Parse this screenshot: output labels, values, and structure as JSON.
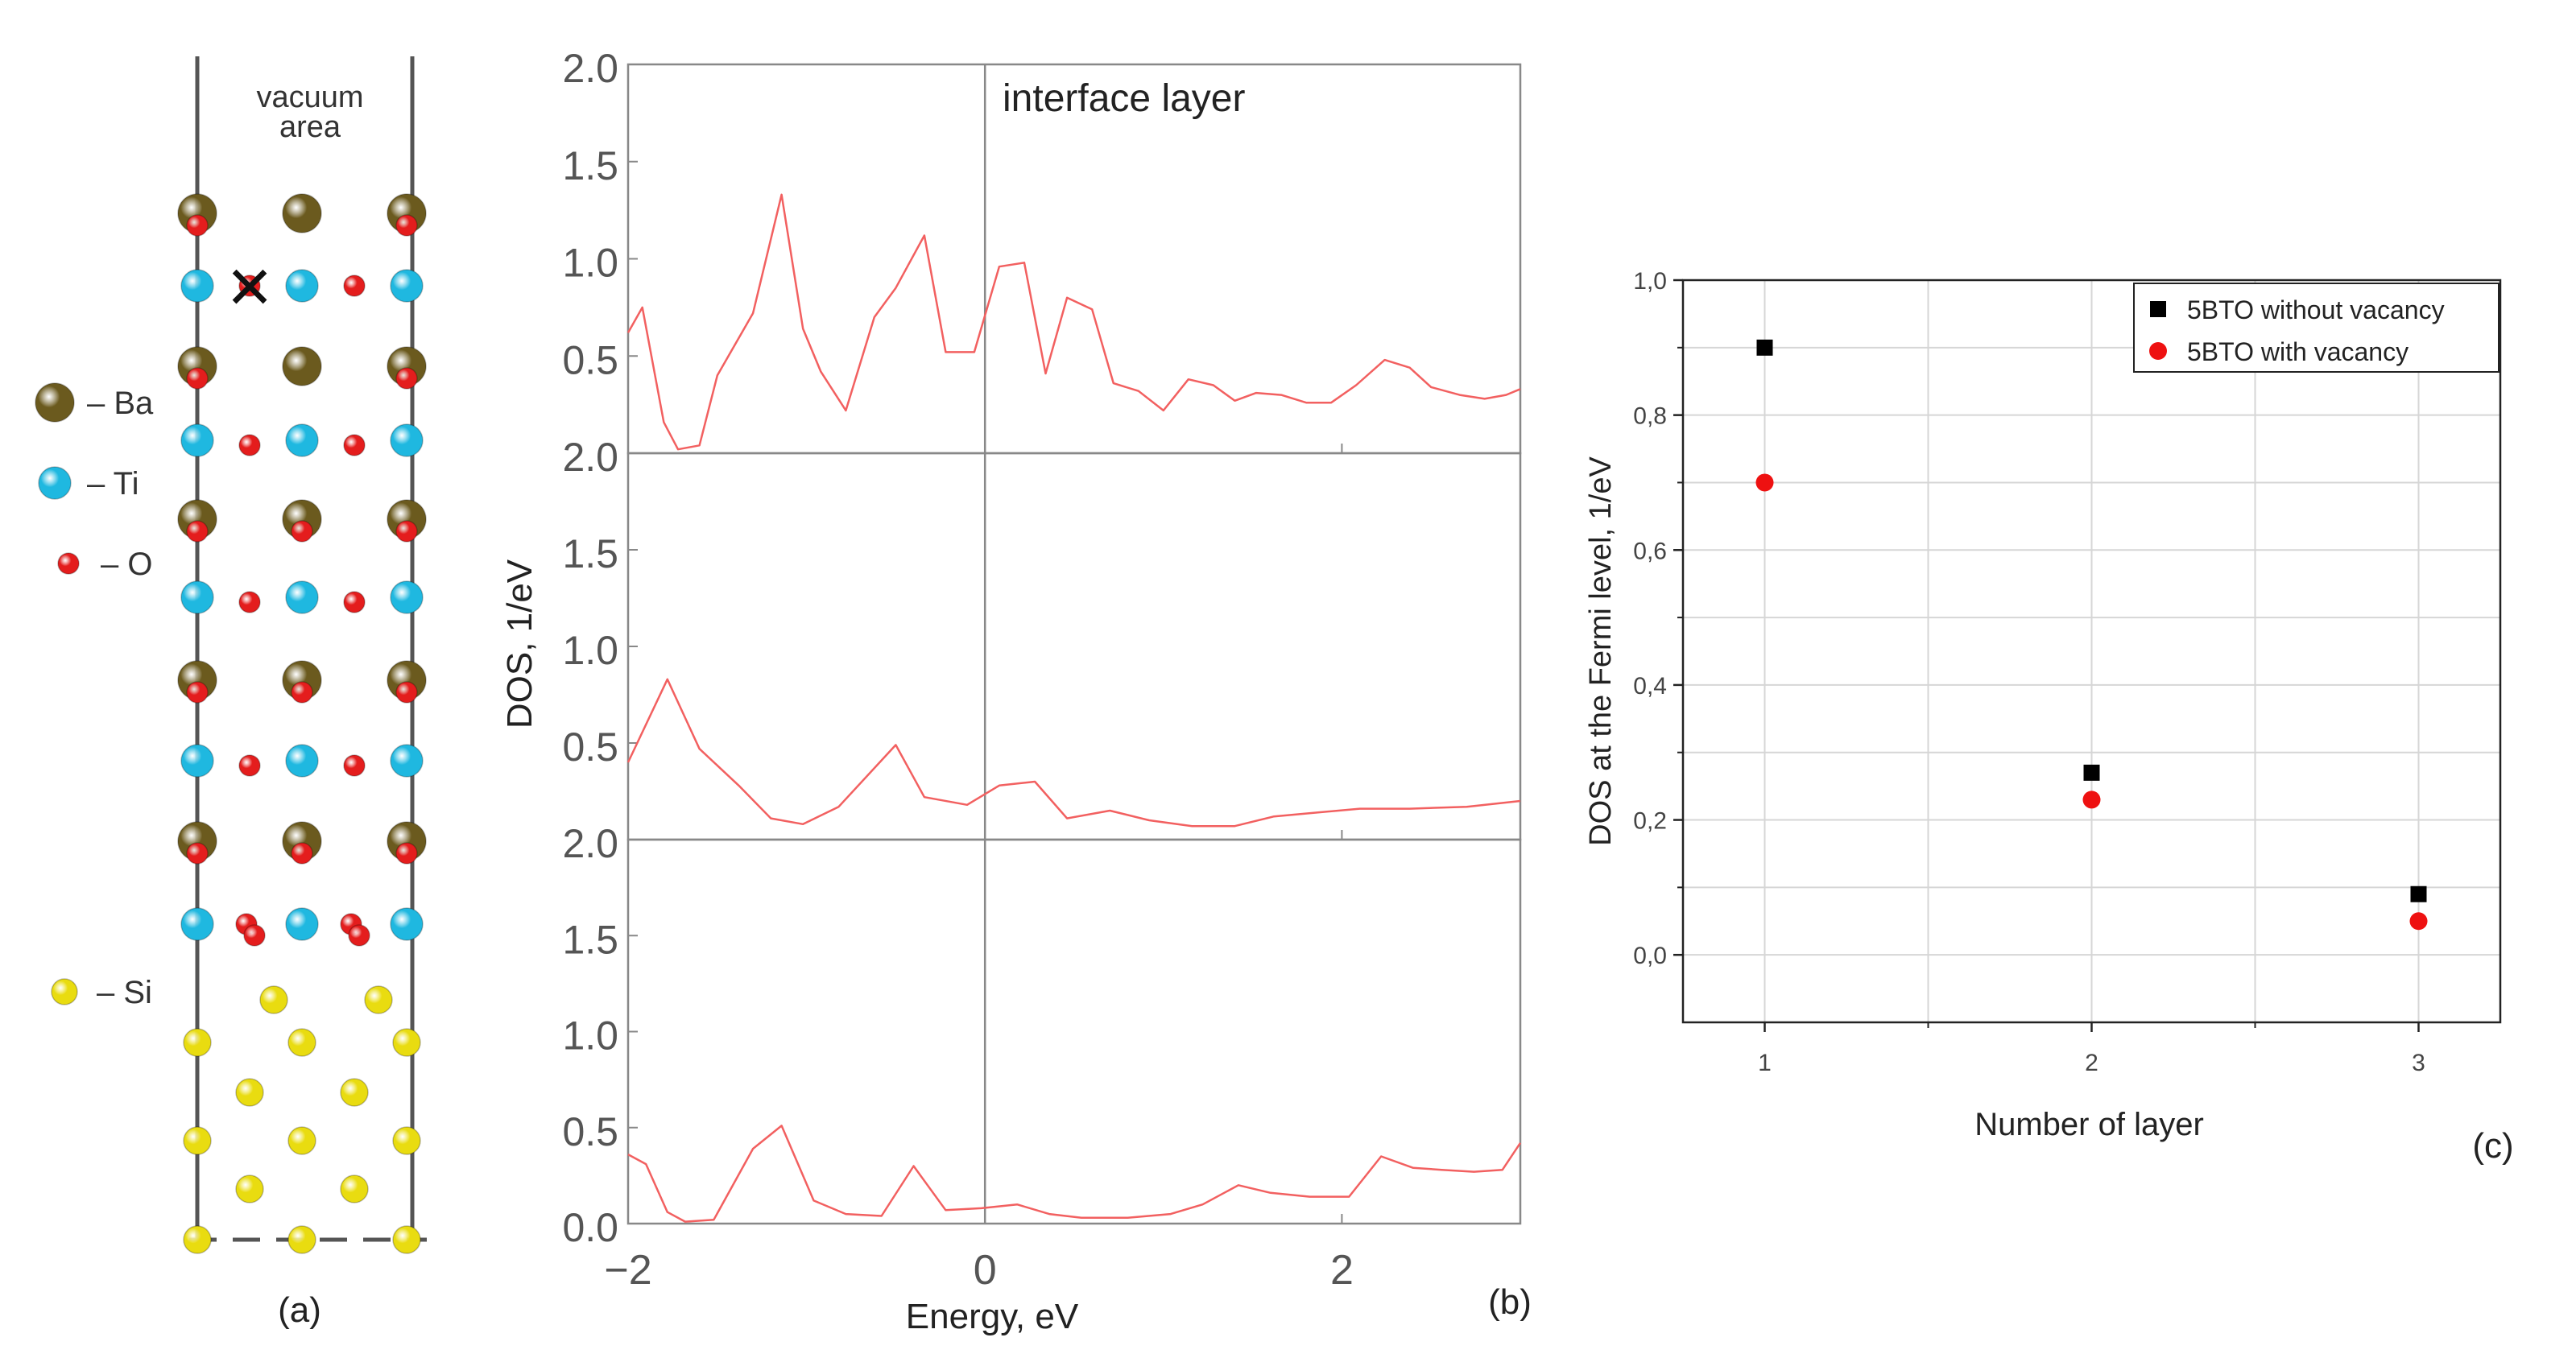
{
  "structure": {
    "vacuum_label_line1": "vacuum",
    "vacuum_label_line2": "area",
    "legend": [
      {
        "symbol": "Ba",
        "label": "– Ba",
        "color": "#6b5a1e"
      },
      {
        "symbol": "Ti",
        "label": "– Ti",
        "color": "#1fb8e0"
      },
      {
        "symbol": "O",
        "label": "– O",
        "color": "#e41d1d"
      },
      {
        "symbol": "Si",
        "label": "– Si",
        "color": "#e9dc10"
      }
    ],
    "vacancy_mark": "×",
    "panel_label": "(a)"
  },
  "chart_data": [
    {
      "type": "line",
      "panel_label": "(b)",
      "xlabel": "Energy, eV",
      "ylabel": "DOS, 1/eV",
      "xlim": [
        -2,
        3
      ],
      "ylim": [
        0,
        2.0
      ],
      "x_ticks": [
        "−2",
        "0",
        "2"
      ],
      "series_color": "#f26060",
      "panels": [
        {
          "annotation": "interface layer",
          "y_ticks": [
            "2.0",
            "1.5",
            "1.0",
            "0.5"
          ],
          "x": [
            -2.0,
            -1.92,
            -1.8,
            -1.72,
            -1.6,
            -1.5,
            -1.3,
            -1.14,
            -1.02,
            -0.92,
            -0.78,
            -0.62,
            -0.5,
            -0.34,
            -0.22,
            -0.06,
            0.08,
            0.22,
            0.34,
            0.46,
            0.6,
            0.72,
            0.86,
            1.0,
            1.14,
            1.28,
            1.4,
            1.52,
            1.66,
            1.8,
            1.94,
            2.08,
            2.24,
            2.38,
            2.5,
            2.66,
            2.8,
            2.92,
            3.0
          ],
          "y": [
            0.62,
            0.75,
            0.16,
            0.02,
            0.04,
            0.4,
            0.72,
            1.33,
            0.64,
            0.42,
            0.22,
            0.7,
            0.85,
            1.12,
            0.52,
            0.52,
            0.96,
            0.98,
            0.41,
            0.8,
            0.74,
            0.36,
            0.32,
            0.22,
            0.38,
            0.35,
            0.27,
            0.31,
            0.3,
            0.26,
            0.26,
            0.35,
            0.48,
            0.44,
            0.34,
            0.3,
            0.28,
            0.3,
            0.33
          ]
        },
        {
          "annotation": "",
          "y_ticks": [
            "2.0",
            "1.5",
            "1.0",
            "0.5"
          ],
          "x": [
            -2.0,
            -1.78,
            -1.6,
            -1.38,
            -1.2,
            -1.02,
            -0.82,
            -0.5,
            -0.34,
            -0.1,
            0.08,
            0.28,
            0.46,
            0.7,
            0.92,
            1.16,
            1.4,
            1.62,
            1.86,
            2.1,
            2.38,
            2.7,
            3.0
          ],
          "y": [
            0.4,
            0.83,
            0.47,
            0.28,
            0.11,
            0.08,
            0.17,
            0.49,
            0.22,
            0.18,
            0.28,
            0.3,
            0.11,
            0.15,
            0.1,
            0.07,
            0.07,
            0.12,
            0.14,
            0.16,
            0.16,
            0.17,
            0.2
          ]
        },
        {
          "annotation": "",
          "y_ticks": [
            "2.0",
            "1.5",
            "1.0",
            "0.5",
            "0.0"
          ],
          "x": [
            -2.0,
            -1.9,
            -1.78,
            -1.68,
            -1.52,
            -1.3,
            -1.14,
            -0.96,
            -0.78,
            -0.58,
            -0.4,
            -0.22,
            -0.02,
            0.18,
            0.36,
            0.54,
            0.8,
            1.04,
            1.22,
            1.42,
            1.6,
            1.82,
            2.04,
            2.22,
            2.4,
            2.56,
            2.74,
            2.9,
            3.0
          ],
          "y": [
            0.36,
            0.31,
            0.06,
            0.01,
            0.02,
            0.39,
            0.51,
            0.12,
            0.05,
            0.04,
            0.3,
            0.07,
            0.08,
            0.1,
            0.05,
            0.03,
            0.03,
            0.05,
            0.1,
            0.2,
            0.16,
            0.14,
            0.14,
            0.35,
            0.29,
            0.28,
            0.27,
            0.28,
            0.42
          ]
        }
      ]
    },
    {
      "type": "scatter",
      "panel_label": "(c)",
      "xlabel": "Number of layer",
      "ylabel": "DOS at the Fermi level, 1/eV",
      "xlim": [
        0.75,
        3.25
      ],
      "ylim": [
        -0.1,
        1.0
      ],
      "x_ticks": [
        "1",
        "2",
        "3"
      ],
      "y_ticks": [
        "0,0",
        "0,2",
        "0,4",
        "0,6",
        "0,8",
        "1,0"
      ],
      "grid": true,
      "legend_position": "top-right",
      "series": [
        {
          "name": "5BTO without vacancy",
          "marker": "square",
          "color": "#000000",
          "x": [
            1,
            2,
            3
          ],
          "y": [
            0.9,
            0.27,
            0.09
          ]
        },
        {
          "name": "5BTO with vacancy",
          "marker": "circle",
          "color": "#ee1111",
          "x": [
            1,
            2,
            3
          ],
          "y": [
            0.7,
            0.23,
            0.05
          ]
        }
      ]
    }
  ]
}
